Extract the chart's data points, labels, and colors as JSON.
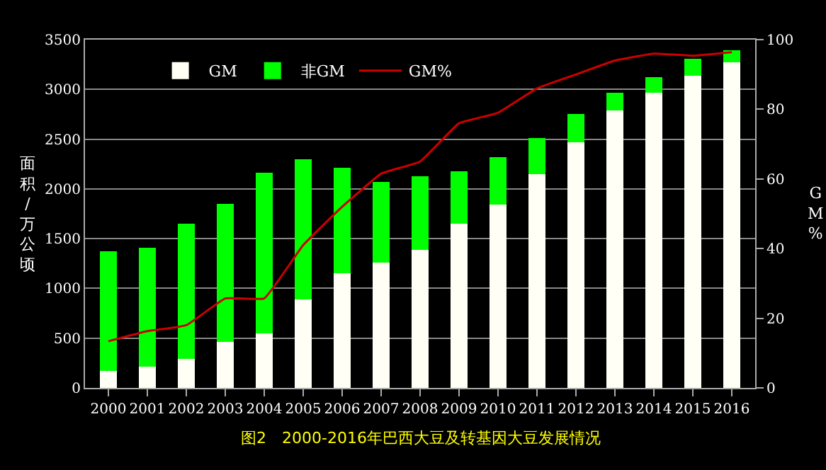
{
  "chart_data": {
    "type": "bar",
    "stacked": true,
    "ylabel": "面积/万公顷",
    "y2label": "GM%",
    "categories": [
      "2000",
      "2001",
      "2002",
      "2003",
      "2004",
      "2005",
      "2006",
      "2007",
      "2008",
      "2009",
      "2010",
      "2011",
      "2012",
      "2013",
      "2014",
      "2015",
      "2016"
    ],
    "series": [
      {
        "name": "GM",
        "color": "#fffff5",
        "values": [
          170,
          210,
          290,
          460,
          550,
          890,
          1150,
          1260,
          1390,
          1650,
          1840,
          2150,
          2470,
          2790,
          2970,
          3140,
          3270
        ]
      },
      {
        "name": "非GM",
        "color": "#00ff00",
        "values": [
          1200,
          1200,
          1360,
          1390,
          1610,
          1410,
          1060,
          810,
          740,
          530,
          480,
          360,
          280,
          180,
          150,
          170,
          120
        ]
      },
      {
        "name": "GM%",
        "type": "line",
        "axis": "y2",
        "color": "#cc0000",
        "values": [
          13.4,
          16.3,
          18,
          25.7,
          25.7,
          41,
          52,
          61.5,
          65,
          76,
          79,
          86,
          90,
          94,
          96,
          95.4,
          96.4
        ]
      }
    ],
    "ylim": [
      0,
      3500
    ],
    "yticks": [
      0,
      500,
      1000,
      1500,
      2000,
      2500,
      3000,
      3500
    ],
    "y2lim": [
      0,
      100
    ],
    "y2ticks": [
      0,
      20,
      40,
      60,
      80,
      100
    ],
    "grid": "y",
    "legend": "top",
    "marker": "none",
    "line_style": "solid",
    "annotations": [
      "图2　2000-2016年巴西大豆及转基因大豆发展情况"
    ]
  }
}
